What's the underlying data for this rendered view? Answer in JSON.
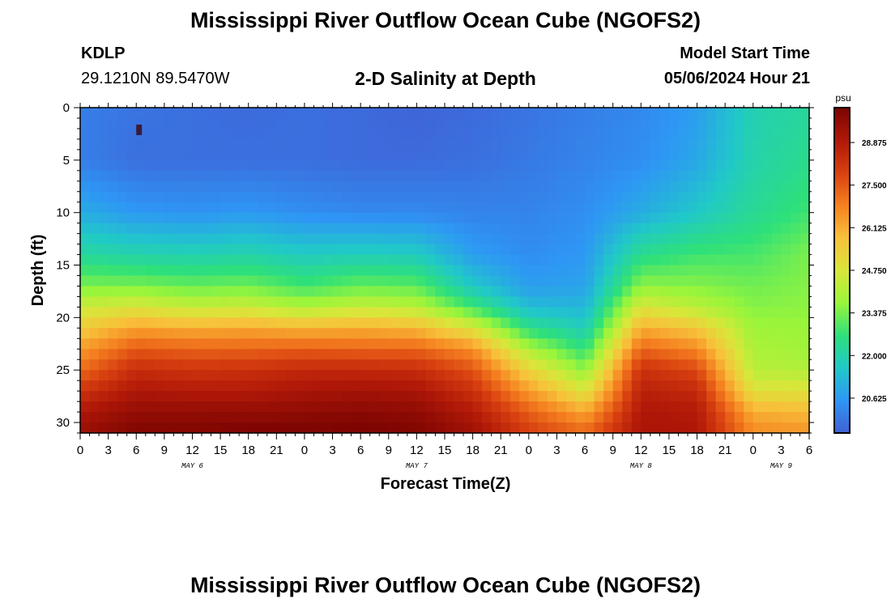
{
  "header": {
    "main_title": "Mississippi River Outflow Ocean Cube (NGOFS2)",
    "station": "KDLP",
    "coords": "29.1210N  89.5470W",
    "subtitle": "2-D Salinity at Depth",
    "model_start_label": "Model Start Time",
    "model_start_value": "05/06/2024 Hour 21",
    "bottom_title": "Mississippi River Outflow Ocean Cube (NGOFS2)"
  },
  "chart_data": {
    "type": "heatmap",
    "title": "2-D Salinity at Depth",
    "xlabel": "Forecast Time(Z)",
    "ylabel": "Depth (ft)",
    "x_tick_labels": [
      "0",
      "3",
      "6",
      "9",
      "12",
      "15",
      "18",
      "21",
      "0",
      "3",
      "6",
      "9",
      "12",
      "15",
      "18",
      "21",
      "0",
      "3",
      "6",
      "9",
      "12",
      "15",
      "18",
      "21",
      "0",
      "3",
      "6"
    ],
    "x_range_hours": [
      0,
      78
    ],
    "day_labels": [
      {
        "label": "MAY 6",
        "hour": 12
      },
      {
        "label": "MAY 7",
        "hour": 36
      },
      {
        "label": "MAY 8",
        "hour": 60
      },
      {
        "label": "MAY 9",
        "hour": 75
      }
    ],
    "y_ticks": [
      0,
      5,
      10,
      15,
      20,
      25,
      30
    ],
    "y_range_ft": [
      0,
      31
    ],
    "y_reversed": true,
    "colorbar": {
      "unit": "psu",
      "tick_labels": [
        "28.875",
        "27.500",
        "26.125",
        "24.750",
        "23.375",
        "22.000",
        "20.625"
      ],
      "tick_values": [
        28.875,
        27.5,
        26.125,
        24.75,
        23.375,
        22.0,
        20.625
      ],
      "range": [
        19.5,
        30.0
      ],
      "colors": [
        "#4060d6",
        "#2e96f5",
        "#20c9c8",
        "#2ee07a",
        "#9af53a",
        "#d9e63a",
        "#f8c03a",
        "#f58020",
        "#d84010",
        "#b01808",
        "#7a0402"
      ]
    },
    "salinity_profiles": {
      "hours": [
        0,
        6,
        12,
        18,
        24,
        30,
        36,
        42,
        48,
        54,
        60,
        66,
        72,
        78
      ],
      "depths_ft": [
        0,
        5,
        10,
        14,
        17,
        19,
        21,
        23,
        25,
        27,
        29,
        31
      ],
      "values": [
        [
          20.1,
          20.1,
          21.0,
          22.2,
          23.4,
          24.5,
          25.5,
          26.4,
          27.2,
          28.2,
          29.0,
          29.4
        ],
        [
          19.9,
          19.8,
          20.6,
          22.0,
          23.4,
          24.8,
          26.3,
          27.5,
          28.4,
          29.0,
          29.5,
          29.9
        ],
        [
          19.8,
          19.8,
          20.5,
          21.9,
          23.2,
          24.4,
          26.1,
          27.3,
          28.2,
          28.9,
          29.5,
          29.9
        ],
        [
          19.7,
          19.8,
          20.6,
          22.0,
          23.3,
          24.5,
          26.2,
          27.3,
          28.3,
          28.9,
          29.5,
          30.0
        ],
        [
          19.8,
          19.8,
          20.4,
          21.7,
          22.8,
          24.0,
          26.0,
          27.4,
          28.5,
          29.1,
          29.6,
          30.0
        ],
        [
          19.7,
          19.7,
          20.3,
          21.8,
          23.2,
          24.4,
          26.1,
          27.3,
          28.5,
          29.2,
          29.7,
          30.0
        ],
        [
          19.6,
          19.7,
          20.3,
          21.7,
          23.1,
          24.2,
          25.9,
          27.3,
          28.4,
          29.1,
          29.6,
          29.9
        ],
        [
          19.7,
          19.8,
          20.2,
          20.7,
          21.6,
          22.8,
          24.8,
          26.6,
          27.6,
          28.3,
          28.9,
          29.3
        ],
        [
          19.9,
          20.0,
          20.2,
          20.4,
          20.7,
          21.3,
          22.5,
          24.0,
          25.3,
          26.4,
          27.4,
          28.0
        ],
        [
          20.1,
          20.2,
          20.4,
          20.6,
          20.8,
          21.2,
          21.8,
          22.6,
          23.6,
          24.8,
          26.2,
          27.3
        ],
        [
          20.3,
          20.4,
          21.0,
          22.4,
          23.6,
          24.8,
          26.1,
          27.3,
          28.3,
          28.7,
          29.0,
          29.1
        ],
        [
          20.7,
          20.9,
          21.6,
          22.8,
          23.5,
          24.2,
          25.6,
          26.7,
          27.8,
          28.5,
          28.9,
          29.0
        ],
        [
          21.9,
          22.0,
          22.3,
          22.9,
          23.3,
          23.5,
          23.8,
          24.0,
          24.2,
          24.9,
          26.1,
          26.7
        ],
        [
          22.2,
          22.4,
          22.8,
          23.4,
          23.5,
          23.6,
          23.7,
          23.8,
          24.1,
          24.9,
          25.9,
          26.5
        ]
      ]
    },
    "marker": {
      "hour": 6.3,
      "depth_ft": 2
    }
  }
}
